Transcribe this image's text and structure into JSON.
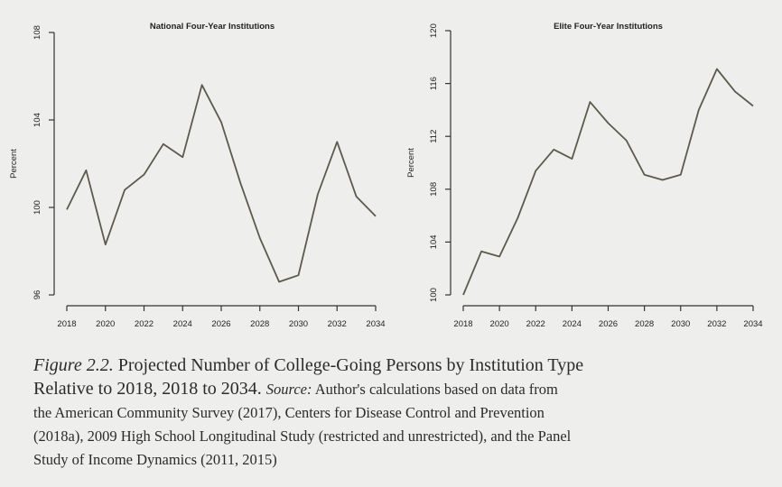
{
  "chart_data": [
    {
      "type": "line",
      "title": "National Four-Year Institutions",
      "xlabel": "",
      "ylabel": "Percent",
      "x": [
        2018,
        2019,
        2020,
        2021,
        2022,
        2023,
        2024,
        2025,
        2026,
        2027,
        2028,
        2029,
        2030,
        2031,
        2032,
        2033,
        2034
      ],
      "series": [
        {
          "values": [
            99.9,
            101.7,
            98.3,
            100.8,
            101.5,
            102.9,
            102.3,
            105.6,
            103.9,
            101.1,
            98.6,
            96.6,
            96.9,
            100.6,
            103.0,
            100.5,
            99.6
          ]
        }
      ],
      "xticks": [
        2018,
        2020,
        2022,
        2024,
        2026,
        2028,
        2030,
        2032,
        2034
      ],
      "xtick_labels": [
        "2018",
        "2020",
        "2022",
        "2024",
        "2026",
        "2028",
        "2030",
        "2032",
        "2034"
      ],
      "yticks": [
        96,
        100,
        104,
        108
      ],
      "ytick_labels": [
        "96",
        "100",
        "104",
        "108"
      ],
      "xlim": [
        2018,
        2034
      ],
      "ylim": [
        96,
        108
      ],
      "grid": false,
      "line_color": "#5c5a4c"
    },
    {
      "type": "line",
      "title": "Elite Four-Year Institutions",
      "xlabel": "",
      "ylabel": "Percent",
      "x": [
        2018,
        2019,
        2020,
        2021,
        2022,
        2023,
        2024,
        2025,
        2026,
        2027,
        2028,
        2029,
        2030,
        2031,
        2032,
        2033,
        2034
      ],
      "series": [
        {
          "values": [
            100.0,
            103.3,
            102.9,
            105.8,
            109.4,
            111.0,
            110.3,
            114.6,
            113.0,
            111.7,
            109.1,
            108.7,
            109.1,
            114.0,
            117.1,
            115.4,
            114.3
          ]
        }
      ],
      "xticks": [
        2018,
        2020,
        2022,
        2024,
        2026,
        2028,
        2030,
        2032,
        2034
      ],
      "xtick_labels": [
        "2018",
        "2020",
        "2022",
        "2024",
        "2026",
        "2028",
        "2030",
        "2032",
        "2034"
      ],
      "yticks": [
        100,
        104,
        108,
        112,
        116,
        120
      ],
      "ytick_labels": [
        "100",
        "104",
        "108",
        "112",
        "116",
        "120"
      ],
      "xlim": [
        2018,
        2034
      ],
      "ylim": [
        100,
        120
      ],
      "grid": false,
      "line_color": "#5c5a4c"
    }
  ],
  "caption": {
    "figure_label": "Figure 2.2.",
    "title_part1": "Projected Number of College-Going Persons by Institution Type",
    "title_part2": "Relative to 2018, 2018 to 2034.",
    "source_label": "Source:",
    "source_line1": "Author's calculations based on data from",
    "line3": "the American Community Survey (2017), Centers for Disease Control and Prevention",
    "line4": "(2018a), 2009 High School Longitudinal Study (restricted and unrestricted), and the Panel",
    "line5": "Study of Income Dynamics (2011, 2015)"
  }
}
